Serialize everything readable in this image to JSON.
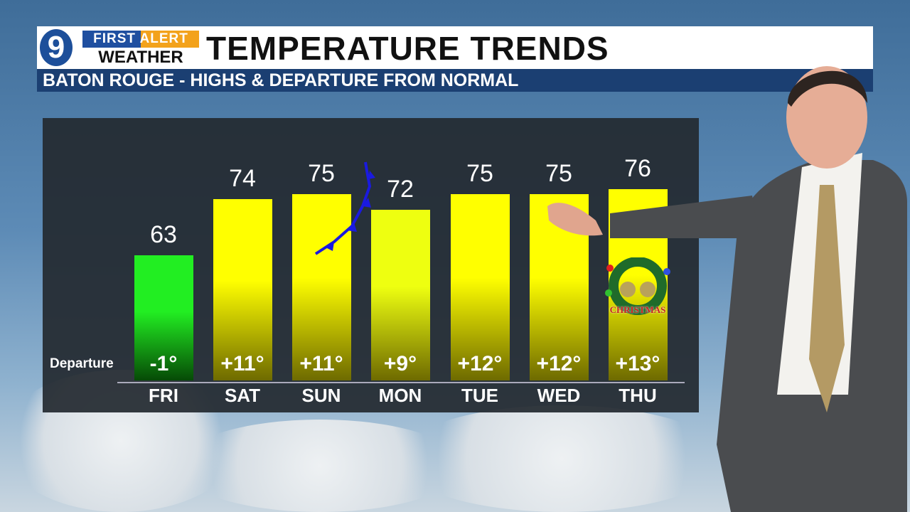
{
  "header": {
    "logo_number": "9",
    "brand_top": "FIRST ALERT",
    "brand_bottom": "WEATHER",
    "title": "TEMPERATURE TRENDS",
    "subtitle": "BATON ROUGE - HIGHS & DEPARTURE FROM NORMAL"
  },
  "chart_data": {
    "type": "bar",
    "categories": [
      "FRI",
      "SAT",
      "SUN",
      "MON",
      "TUE",
      "WED",
      "THU"
    ],
    "values": [
      63,
      74,
      75,
      72,
      75,
      75,
      76
    ],
    "departure_label": "Departure",
    "departures": [
      "-1°",
      "+11°",
      "+11°",
      "+9°",
      "+12°",
      "+12°",
      "+13°"
    ],
    "bar_colors": [
      "#22ee22",
      "#ffff00",
      "#ffff00",
      "#eeff10",
      "#ffff00",
      "#ffff00",
      "#ffff00"
    ],
    "grid": false,
    "annotations": [
      "cold front over SUN"
    ],
    "badge": "CHRISTMAS"
  },
  "colors": {
    "front": "#1a1ae0",
    "header_bar": "#1b3f72",
    "panel": "#242a30"
  }
}
